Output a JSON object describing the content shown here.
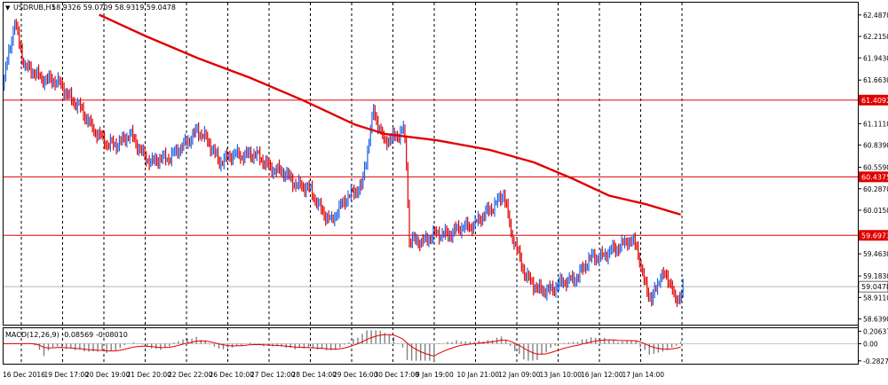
{
  "header": {
    "triangle_glyph": "▼",
    "symbol": "USDRUB,H1",
    "ohlc": "58.9326 59.0709 58.9319 59.0478"
  },
  "indicator": {
    "label": "MACD(12,26,9) -0.08569 -0.08010"
  },
  "colors": {
    "background": "#ffffff",
    "bull_candle": "#1e62e8",
    "bear_candle": "#e00000",
    "moving_average": "#e00000",
    "level_line": "#e00000",
    "level_badge": "#e00000",
    "histogram": "#808080",
    "signal_line": "#e00000",
    "grid": "#000000"
  },
  "chart_data": {
    "type": "candlestick",
    "price_axis_ticks": [
      "62.4870",
      "62.2150",
      "61.9430",
      "61.6630",
      "61.1110",
      "60.8390",
      "60.5590",
      "60.2870",
      "60.0150",
      "59.4630",
      "59.1830",
      "58.9110",
      "58.6390"
    ],
    "price_range": [
      58.6,
      62.62
    ],
    "time_axis_labels": [
      "16 Dec 2016",
      "19 Dec 17:00",
      "20 Dec 19:00",
      "21 Dec 20:00",
      "22 Dec 22:00",
      "26 Dec 10:00",
      "27 Dec 12:00",
      "28 Dec 14:00",
      "29 Dec 16:00",
      "30 Dec 17:00",
      "9 Jan 19:00",
      "10 Jan 21:00",
      "12 Jan 09:00",
      "13 Jan 10:00",
      "16 Jan 12:00",
      "17 Jan 14:00"
    ],
    "horizontal_levels": [
      {
        "value": 61.4092,
        "label": "61.4092"
      },
      {
        "value": 60.4375,
        "label": "60.4375"
      },
      {
        "value": 59.6973,
        "label": "59.6973"
      }
    ],
    "current_price": {
      "value": 59.0478,
      "label": "59.0478"
    },
    "moving_average": [
      {
        "bar": 64,
        "price": 62.49
      },
      {
        "bar": 95,
        "price": 62.22
      },
      {
        "bar": 130,
        "price": 61.94
      },
      {
        "bar": 165,
        "price": 61.69
      },
      {
        "bar": 200,
        "price": 61.41
      },
      {
        "bar": 235,
        "price": 61.1
      },
      {
        "bar": 255,
        "price": 60.98
      },
      {
        "bar": 290,
        "price": 60.9
      },
      {
        "bar": 325,
        "price": 60.78
      },
      {
        "bar": 355,
        "price": 60.62
      },
      {
        "bar": 380,
        "price": 60.42
      },
      {
        "bar": 405,
        "price": 60.2
      },
      {
        "bar": 430,
        "price": 60.09
      },
      {
        "bar": 453,
        "price": 59.96
      }
    ],
    "macd_axis_ticks": [
      "0.20637",
      "0.00",
      "-0.28273"
    ],
    "macd_range": [
      -0.3,
      0.24
    ],
    "total_bars": 455,
    "price_anchors": [
      {
        "bar": 0,
        "price": 61.55
      },
      {
        "bar": 8,
        "price": 62.42
      },
      {
        "bar": 15,
        "price": 61.8
      },
      {
        "bar": 40,
        "price": 61.58
      },
      {
        "bar": 55,
        "price": 61.2
      },
      {
        "bar": 70,
        "price": 60.82
      },
      {
        "bar": 85,
        "price": 60.95
      },
      {
        "bar": 100,
        "price": 60.6
      },
      {
        "bar": 120,
        "price": 60.79
      },
      {
        "bar": 130,
        "price": 61.05
      },
      {
        "bar": 145,
        "price": 60.65
      },
      {
        "bar": 165,
        "price": 60.74
      },
      {
        "bar": 185,
        "price": 60.5
      },
      {
        "bar": 205,
        "price": 60.26
      },
      {
        "bar": 220,
        "price": 59.85
      },
      {
        "bar": 230,
        "price": 60.2
      },
      {
        "bar": 240,
        "price": 60.28
      },
      {
        "bar": 248,
        "price": 61.3
      },
      {
        "bar": 255,
        "price": 60.85
      },
      {
        "bar": 268,
        "price": 61.05
      },
      {
        "bar": 270,
        "price": 60.6
      },
      {
        "bar": 272,
        "price": 59.6
      },
      {
        "bar": 290,
        "price": 59.69
      },
      {
        "bar": 310,
        "price": 59.79
      },
      {
        "bar": 325,
        "price": 59.98
      },
      {
        "bar": 335,
        "price": 60.25
      },
      {
        "bar": 340,
        "price": 59.7
      },
      {
        "bar": 350,
        "price": 59.2
      },
      {
        "bar": 358,
        "price": 58.98
      },
      {
        "bar": 375,
        "price": 59.08
      },
      {
        "bar": 385,
        "price": 59.2
      },
      {
        "bar": 395,
        "price": 59.42
      },
      {
        "bar": 410,
        "price": 59.5
      },
      {
        "bar": 418,
        "price": 59.66
      },
      {
        "bar": 424,
        "price": 59.55
      },
      {
        "bar": 428,
        "price": 59.15
      },
      {
        "bar": 434,
        "price": 58.9
      },
      {
        "bar": 440,
        "price": 59.18
      },
      {
        "bar": 447,
        "price": 59.1
      },
      {
        "bar": 450,
        "price": 58.85
      },
      {
        "bar": 455,
        "price": 59.05
      }
    ]
  }
}
